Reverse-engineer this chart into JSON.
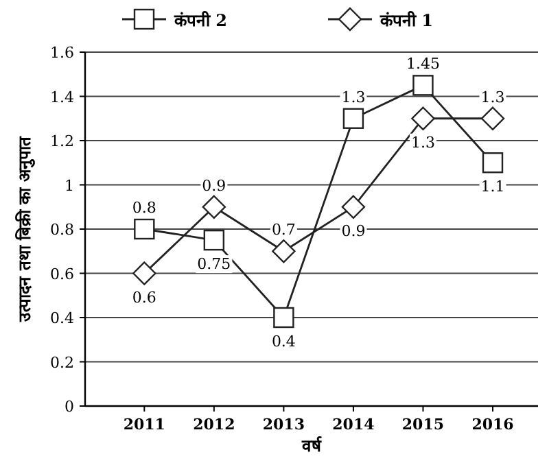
{
  "chart_data": {
    "type": "line",
    "xlabel": "वर्ष",
    "ylabel": "उत्पादन तथा बिक्री का अनुपात",
    "categories": [
      "2011",
      "2012",
      "2013",
      "2014",
      "2015",
      "2016"
    ],
    "series": [
      {
        "name": "कंपनी 2",
        "color": "#222222",
        "marker": "square",
        "values": [
          0.8,
          0.75,
          0.4,
          1.3,
          1.45,
          1.1
        ]
      },
      {
        "name": "कंपनी 1",
        "color": "#222222",
        "marker": "diamond",
        "values": [
          0.6,
          0.9,
          0.7,
          0.9,
          1.3,
          1.3
        ]
      }
    ],
    "ylim": [
      0,
      1.6
    ],
    "yticks": [
      0,
      0.2,
      0.4,
      0.6,
      0.8,
      1,
      1.2,
      1.4,
      1.6
    ],
    "grid": "y",
    "legend": "top",
    "data_labels": true,
    "line_style": "solid"
  }
}
